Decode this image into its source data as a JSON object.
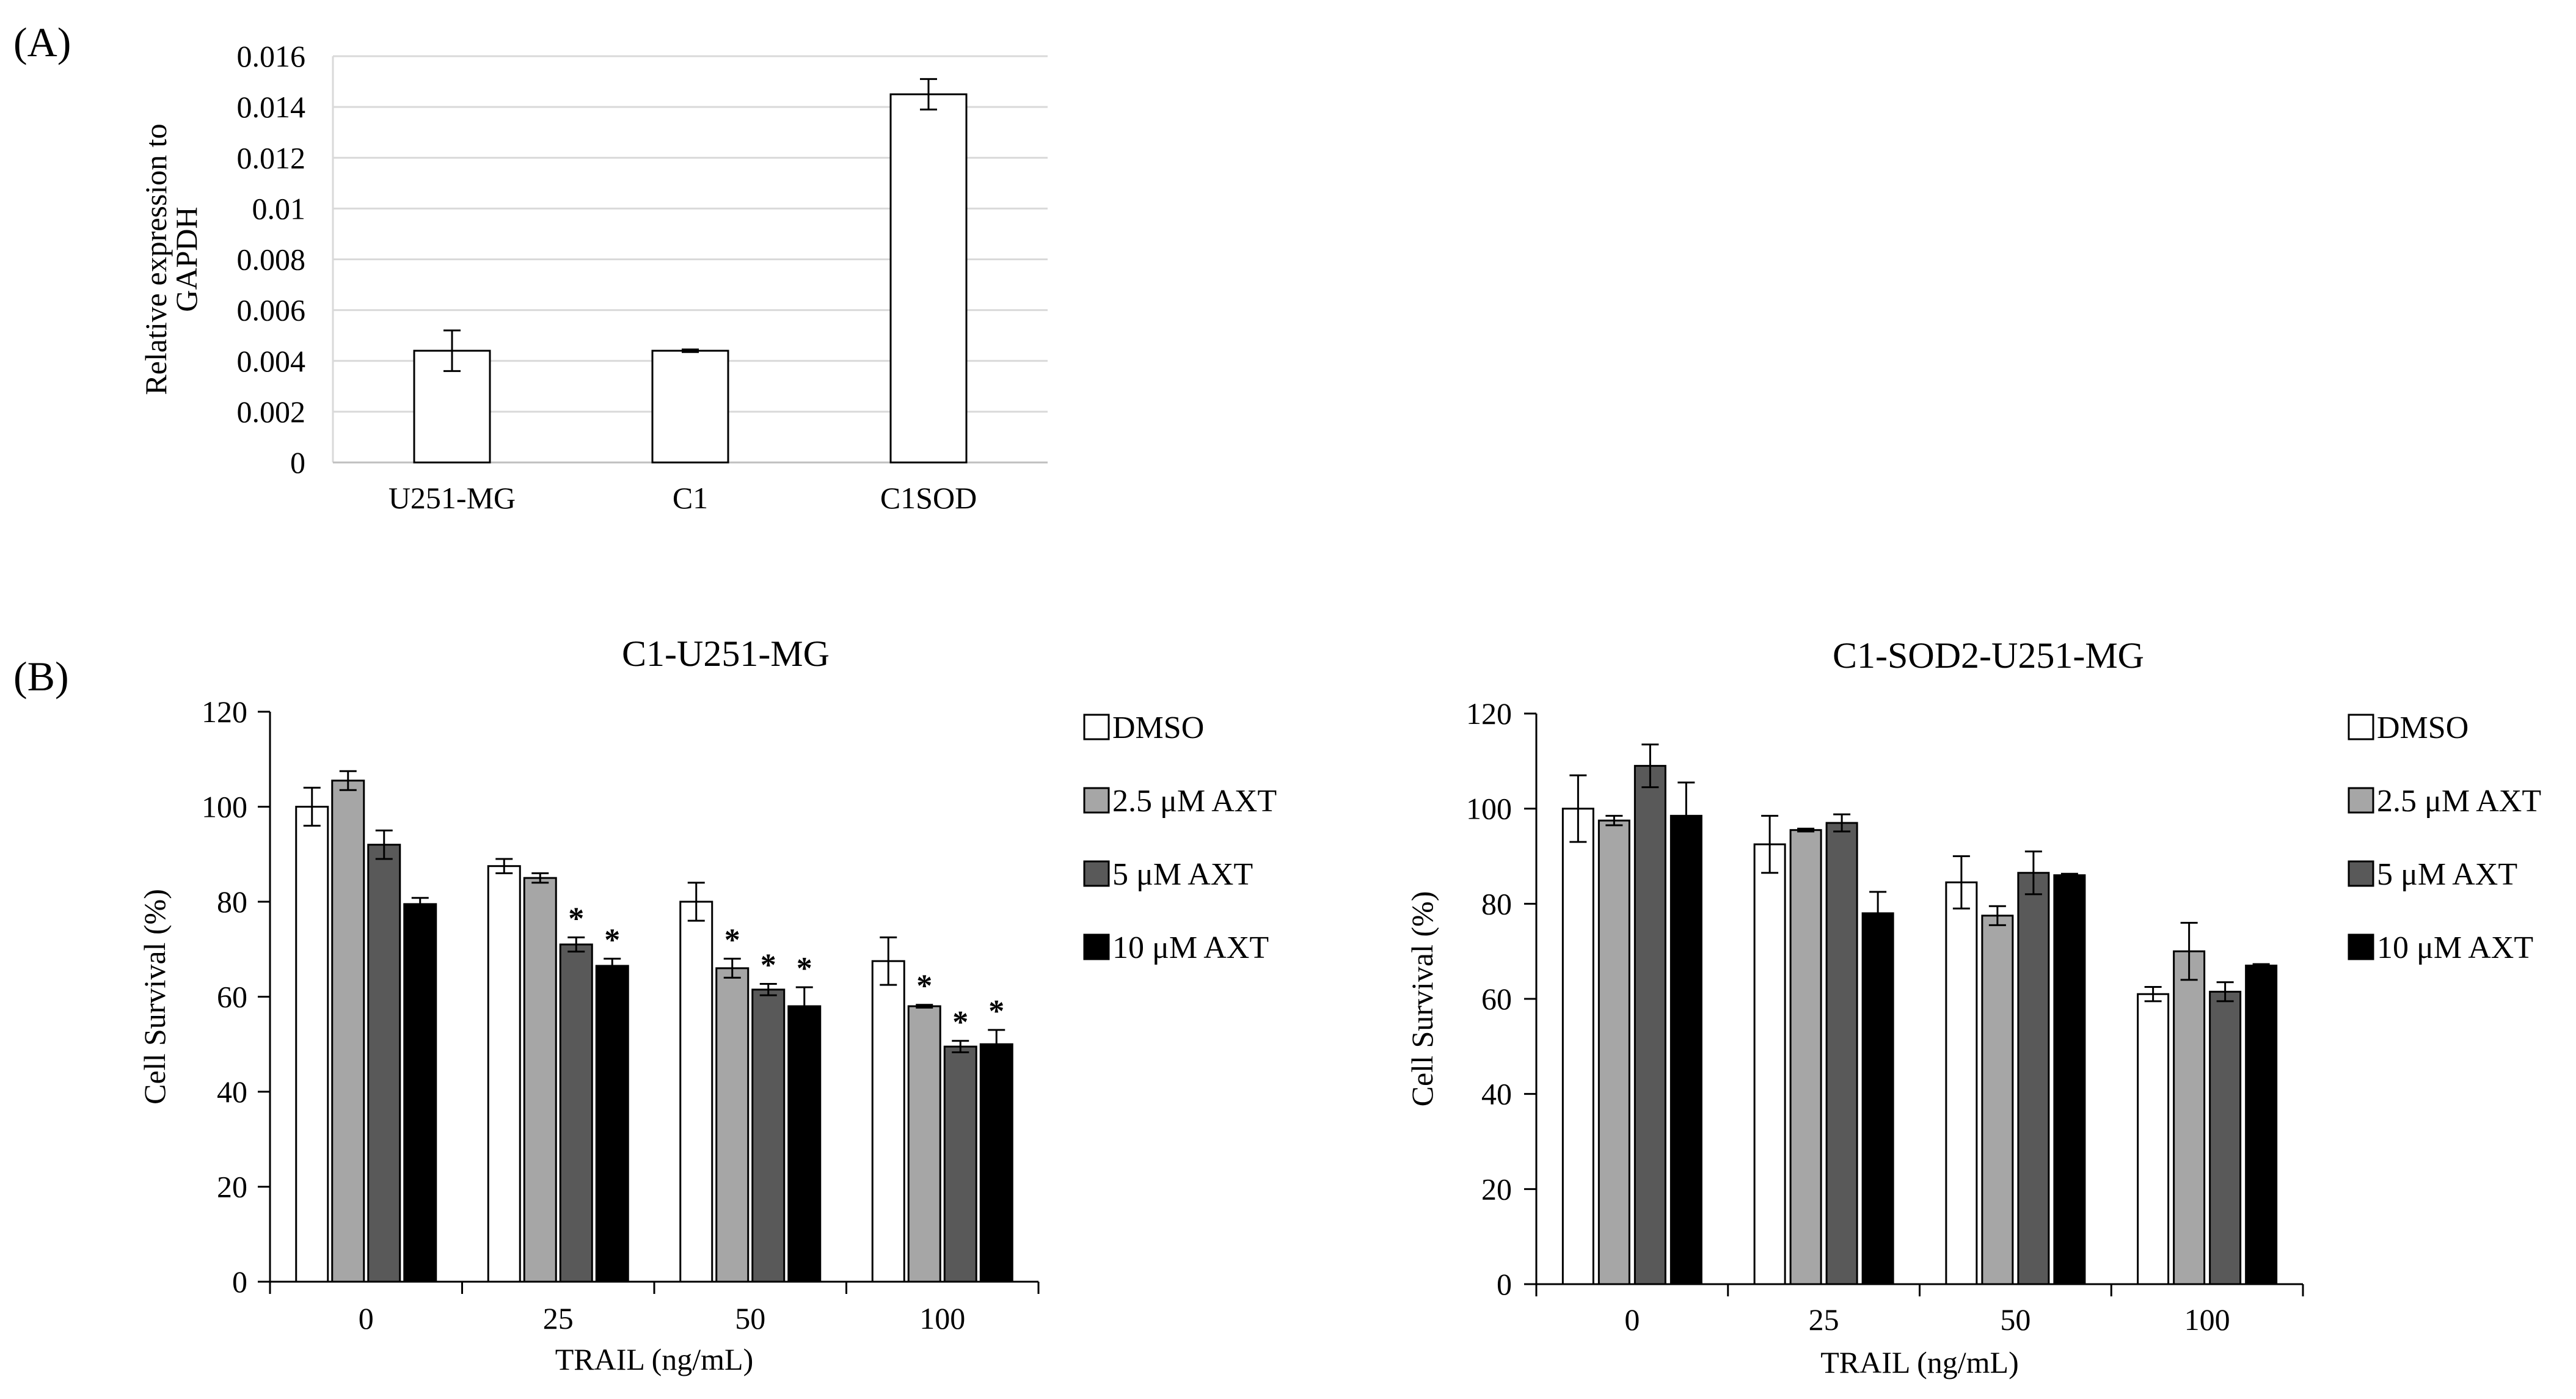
{
  "figure_labels": {
    "a": "(A)",
    "b": "(B)"
  },
  "colors": {
    "DMSO": "#ffffff",
    "2.5 μM AXT": "#a6a6a6",
    "5 μM AXT": "#595959",
    "10 μM AXT": "#000000",
    "grid": "#d9d9d9",
    "axis": "#000000"
  },
  "chart_data": [
    {
      "id": "A",
      "type": "bar",
      "title": "",
      "categories": [
        "U251-MG",
        "C1",
        "C1SOD"
      ],
      "series": [
        {
          "name": "Relative expression",
          "values": [
            0.0044,
            0.0044,
            0.0145
          ],
          "errors": [
            0.0008,
            5e-05,
            0.0006
          ]
        }
      ],
      "xlabel": "",
      "ylabel": "Relative expression to GAPDH",
      "ylim": [
        0,
        0.016
      ],
      "yticks": [
        0,
        0.002,
        0.004,
        0.006,
        0.008,
        0.01,
        0.012,
        0.014,
        0.016
      ],
      "ytick_labels": [
        "0",
        "0.002",
        "0.004",
        "0.006",
        "0.008",
        "0.01",
        "0.012",
        "0.014",
        "0.016"
      ],
      "grid": true,
      "legend": null
    },
    {
      "id": "B1",
      "type": "bar",
      "title": "C1-U251-MG",
      "categories": [
        "0",
        "25",
        "50",
        "100"
      ],
      "series": [
        {
          "name": "DMSO",
          "values": [
            100,
            87.5,
            80,
            67.5
          ],
          "errors": [
            4,
            1.5,
            4,
            5
          ],
          "stars": [
            false,
            false,
            false,
            false
          ]
        },
        {
          "name": "2.5 μM AXT",
          "values": [
            105.5,
            85,
            66,
            58
          ],
          "errors": [
            2,
            1,
            2,
            0.3
          ],
          "stars": [
            false,
            false,
            true,
            true
          ]
        },
        {
          "name": "5 μM AXT",
          "values": [
            92,
            71,
            61.5,
            49.5
          ],
          "errors": [
            3,
            1.5,
            1.2,
            1.2
          ],
          "stars": [
            false,
            true,
            true,
            true
          ]
        },
        {
          "name": "10 μM AXT",
          "values": [
            79.5,
            66.5,
            58,
            50
          ],
          "errors": [
            1.3,
            1.5,
            4,
            3
          ],
          "stars": [
            false,
            true,
            true,
            true
          ]
        }
      ],
      "star_label": "*",
      "xlabel": "TRAIL (ng/mL)",
      "ylabel": "Cell Survival (%)",
      "ylim": [
        0,
        120
      ],
      "yticks": [
        0,
        20,
        40,
        60,
        80,
        100,
        120
      ],
      "ytick_labels": [
        "0",
        "20",
        "40",
        "60",
        "80",
        "100",
        "120"
      ],
      "grid": false,
      "legend": "right"
    },
    {
      "id": "B2",
      "type": "bar",
      "title": "C1-SOD2-U251-MG",
      "categories": [
        "0",
        "25",
        "50",
        "100"
      ],
      "series": [
        {
          "name": "DMSO",
          "values": [
            100,
            92.5,
            84.5,
            61
          ],
          "errors": [
            7,
            6,
            5.5,
            1.5
          ],
          "stars": [
            false,
            false,
            false,
            false
          ]
        },
        {
          "name": "2.5 μM AXT",
          "values": [
            97.5,
            95.5,
            77.5,
            70
          ],
          "errors": [
            1,
            0.3,
            2,
            6
          ],
          "stars": [
            false,
            false,
            false,
            false
          ]
        },
        {
          "name": "5 μM AXT",
          "values": [
            109,
            97,
            86.5,
            61.5
          ],
          "errors": [
            4.5,
            1.8,
            4.5,
            2
          ],
          "stars": [
            false,
            false,
            false,
            false
          ]
        },
        {
          "name": "10 μM AXT",
          "values": [
            98.5,
            78,
            86,
            67
          ],
          "errors": [
            7,
            4.5,
            0.3,
            0.3
          ],
          "stars": [
            false,
            false,
            false,
            false
          ]
        }
      ],
      "star_label": "*",
      "xlabel": "TRAIL (ng/mL)",
      "ylabel": "Cell Survival (%)",
      "ylim": [
        0,
        120
      ],
      "yticks": [
        0,
        20,
        40,
        60,
        80,
        100,
        120
      ],
      "ytick_labels": [
        "0",
        "20",
        "40",
        "60",
        "80",
        "100",
        "120"
      ],
      "grid": false,
      "legend": "right"
    }
  ]
}
